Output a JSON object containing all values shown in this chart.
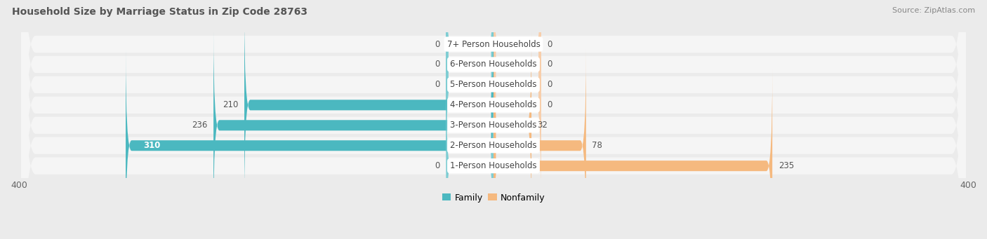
{
  "title": "Household Size by Marriage Status in Zip Code 28763",
  "source": "Source: ZipAtlas.com",
  "categories": [
    "7+ Person Households",
    "6-Person Households",
    "5-Person Households",
    "4-Person Households",
    "3-Person Households",
    "2-Person Households",
    "1-Person Households"
  ],
  "family_values": [
    0,
    0,
    0,
    210,
    236,
    310,
    0
  ],
  "nonfamily_values": [
    0,
    0,
    0,
    0,
    32,
    78,
    235
  ],
  "family_color": "#4BB8C0",
  "nonfamily_color": "#F5B97F",
  "zero_family_color": "#7DCDD3",
  "zero_nonfamily_color": "#F8CEAA",
  "xlim_left": -400,
  "xlim_right": 400,
  "background_color": "#ebebeb",
  "row_bg_color": "#f5f5f5",
  "title_fontsize": 10,
  "source_fontsize": 8,
  "label_fontsize": 8.5,
  "category_fontsize": 8.5,
  "zero_stub": 40
}
